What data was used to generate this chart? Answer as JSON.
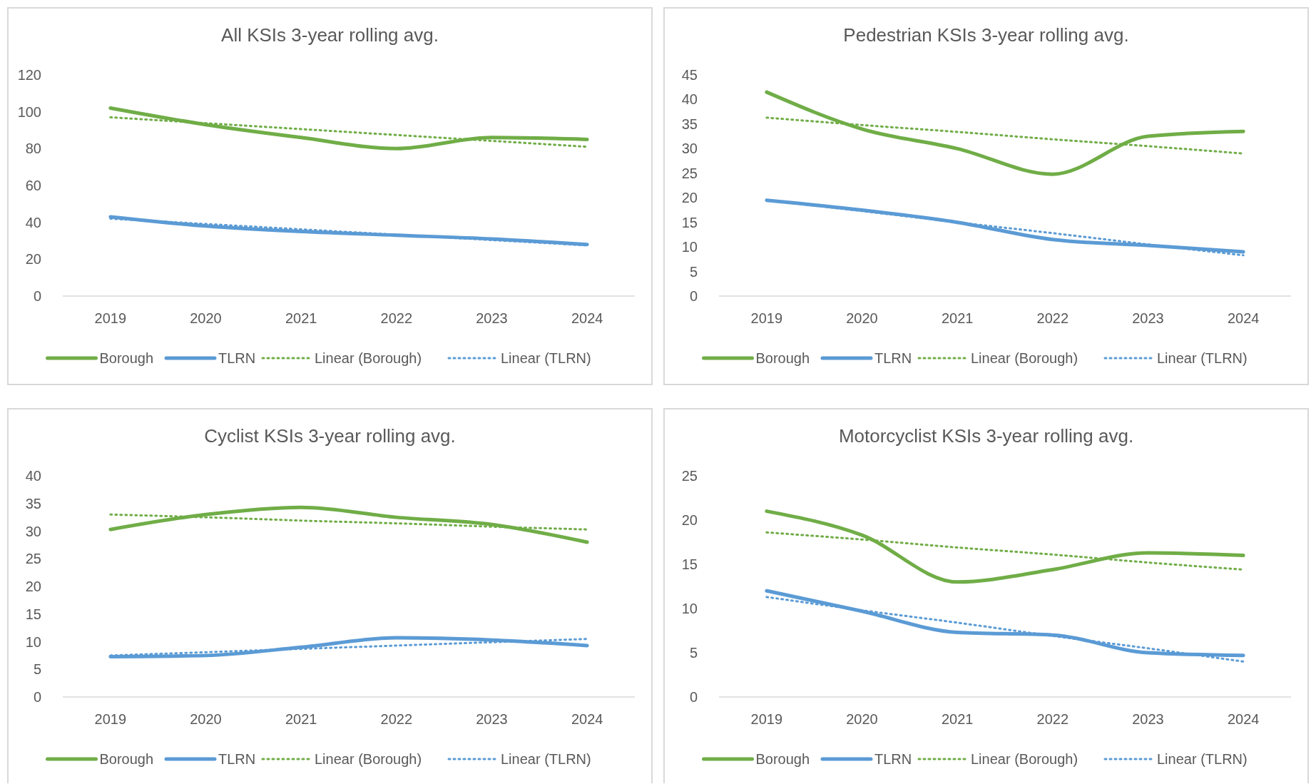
{
  "chart_data": [
    {
      "type": "line",
      "title": "All KSIs 3-year rolling avg.",
      "categories": [
        "2019",
        "2020",
        "2021",
        "2022",
        "2023",
        "2024"
      ],
      "ylim": [
        0,
        120
      ],
      "yticks": [
        0,
        20,
        40,
        60,
        80,
        100,
        120
      ],
      "legend": "bottom",
      "series": [
        {
          "name": "Borough",
          "color": "#70ad47",
          "line_style": "solid",
          "values": [
            102,
            93,
            86,
            80,
            86,
            85
          ]
        },
        {
          "name": "TLRN",
          "color": "#5b9bd5",
          "line_style": "solid",
          "values": [
            43,
            38,
            35,
            33,
            31,
            28
          ]
        },
        {
          "name": "Linear (Borough)",
          "color": "#70ad47",
          "line_style": "dotted",
          "values": [
            97,
            93.8,
            90.6,
            87.4,
            84.2,
            81
          ]
        },
        {
          "name": "Linear (TLRN)",
          "color": "#5b9bd5",
          "line_style": "dotted",
          "values": [
            42,
            39.1,
            36.2,
            33.3,
            30.4,
            27.5
          ]
        }
      ]
    },
    {
      "type": "line",
      "title": "Pedestrian KSIs 3-year rolling avg.",
      "categories": [
        "2019",
        "2020",
        "2021",
        "2022",
        "2023",
        "2024"
      ],
      "ylim": [
        0,
        45
      ],
      "yticks": [
        0,
        5,
        10,
        15,
        20,
        25,
        30,
        35,
        40,
        45
      ],
      "legend": "bottom",
      "series": [
        {
          "name": "Borough",
          "color": "#70ad47",
          "line_style": "solid",
          "values": [
            41.5,
            34,
            30,
            24.8,
            32.5,
            33.5
          ]
        },
        {
          "name": "TLRN",
          "color": "#5b9bd5",
          "line_style": "solid",
          "values": [
            19.5,
            17.5,
            15,
            11.5,
            10.3,
            9
          ]
        },
        {
          "name": "Linear (Borough)",
          "color": "#70ad47",
          "line_style": "dotted",
          "values": [
            36.3,
            34.8,
            33.4,
            31.9,
            30.5,
            29
          ]
        },
        {
          "name": "Linear (TLRN)",
          "color": "#5b9bd5",
          "line_style": "dotted",
          "values": [
            19.5,
            17.3,
            15,
            12.8,
            10.5,
            8.3
          ]
        }
      ]
    },
    {
      "type": "line",
      "title": "Cyclist KSIs 3-year rolling avg.",
      "categories": [
        "2019",
        "2020",
        "2021",
        "2022",
        "2023",
        "2024"
      ],
      "ylim": [
        0,
        40
      ],
      "yticks": [
        0,
        5,
        10,
        15,
        20,
        25,
        30,
        35,
        40
      ],
      "legend": "bottom",
      "series": [
        {
          "name": "Borough",
          "color": "#70ad47",
          "line_style": "solid",
          "values": [
            30.3,
            33,
            34.3,
            32.5,
            31.2,
            28
          ]
        },
        {
          "name": "TLRN",
          "color": "#5b9bd5",
          "line_style": "solid",
          "values": [
            7.3,
            7.5,
            9,
            10.7,
            10.3,
            9.3
          ]
        },
        {
          "name": "Linear (Borough)",
          "color": "#70ad47",
          "line_style": "dotted",
          "values": [
            33,
            32.5,
            31.9,
            31.4,
            30.8,
            30.3
          ]
        },
        {
          "name": "Linear (TLRN)",
          "color": "#5b9bd5",
          "line_style": "dotted",
          "values": [
            7.5,
            8.1,
            8.7,
            9.3,
            9.9,
            10.5
          ]
        }
      ]
    },
    {
      "type": "line",
      "title": "Motorcyclist KSIs 3-year rolling avg.",
      "categories": [
        "2019",
        "2020",
        "2021",
        "2022",
        "2023",
        "2024"
      ],
      "ylim": [
        0,
        25
      ],
      "yticks": [
        0,
        5,
        10,
        15,
        20,
        25
      ],
      "legend": "bottom",
      "series": [
        {
          "name": "Borough",
          "color": "#70ad47",
          "line_style": "solid",
          "values": [
            21,
            18.3,
            13,
            14.4,
            16.3,
            16
          ]
        },
        {
          "name": "TLRN",
          "color": "#5b9bd5",
          "line_style": "solid",
          "values": [
            12,
            9.7,
            7.3,
            7,
            5,
            4.7
          ]
        },
        {
          "name": "Linear (Borough)",
          "color": "#70ad47",
          "line_style": "dotted",
          "values": [
            18.6,
            17.8,
            16.9,
            16.1,
            15.2,
            14.4
          ]
        },
        {
          "name": "Linear (TLRN)",
          "color": "#5b9bd5",
          "line_style": "dotted",
          "values": [
            11.3,
            9.8,
            8.4,
            6.9,
            5.5,
            4
          ]
        }
      ]
    }
  ]
}
